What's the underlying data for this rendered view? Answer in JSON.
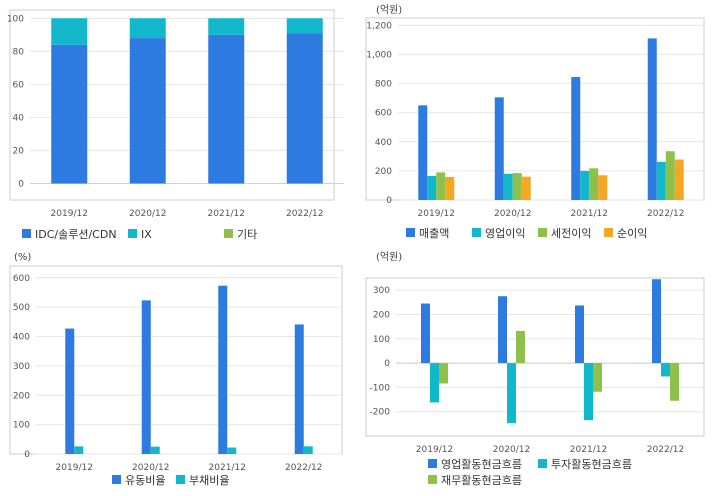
{
  "colors": {
    "blue": "#2d7be0",
    "cyan": "#11b8cc",
    "green": "#8ec04a",
    "orange": "#f5a623",
    "grid": "#e6e6e6",
    "frame": "#cccccc"
  },
  "chart_data": [
    {
      "id": "composition",
      "type": "bar",
      "stacked": true,
      "unit": "",
      "categories": [
        "2019/12",
        "2020/12",
        "2021/12",
        "2022/12"
      ],
      "series": [
        {
          "name": "IDC/솔루션/CDN",
          "color": "blue",
          "values": [
            84,
            88,
            90,
            91
          ]
        },
        {
          "name": "IX",
          "color": "cyan",
          "values": [
            16,
            12,
            10,
            9
          ]
        },
        {
          "name": "기타",
          "color": "green",
          "values": [
            0,
            0,
            0,
            0
          ]
        }
      ],
      "ylim": [
        -10,
        105
      ],
      "yticks": [
        0,
        20,
        40,
        60,
        80,
        100
      ],
      "grid": true,
      "legend": "bottom"
    },
    {
      "id": "income",
      "type": "bar",
      "unit": "(억원)",
      "categories": [
        "2019/12",
        "2020/12",
        "2021/12",
        "2022/12"
      ],
      "series": [
        {
          "name": "매출액",
          "color": "blue",
          "values": [
            650,
            705,
            845,
            1110
          ]
        },
        {
          "name": "영업이익",
          "color": "cyan",
          "values": [
            165,
            180,
            200,
            262
          ]
        },
        {
          "name": "세전이익",
          "color": "green",
          "values": [
            190,
            185,
            218,
            335
          ]
        },
        {
          "name": "순이익",
          "color": "orange",
          "values": [
            158,
            160,
            170,
            278
          ]
        }
      ],
      "ylim": [
        0,
        1250
      ],
      "yticks": [
        0,
        200,
        400,
        600,
        800,
        1000,
        1200
      ],
      "ytick_labels": [
        "0",
        "200",
        "400",
        "600",
        "800",
        "1,000",
        "1,200"
      ],
      "grid": true,
      "legend": "bottom"
    },
    {
      "id": "ratios",
      "type": "bar",
      "unit": "(%)",
      "categories": [
        "2019/12",
        "2020/12",
        "2021/12",
        "2022/12"
      ],
      "series": [
        {
          "name": "유동비율",
          "color": "blue",
          "values": [
            427,
            523,
            573,
            441
          ]
        },
        {
          "name": "부채비율",
          "color": "cyan",
          "values": [
            26,
            25,
            22,
            26
          ]
        }
      ],
      "ylim": [
        0,
        640
      ],
      "yticks": [
        0,
        100,
        200,
        300,
        400,
        500,
        600
      ],
      "grid": true,
      "legend": "bottom"
    },
    {
      "id": "cashflow",
      "type": "bar",
      "unit": "(억원)",
      "categories": [
        "2019/12",
        "2020/12",
        "2021/12",
        "2022/12"
      ],
      "series": [
        {
          "name": "영업활동현금흐름",
          "color": "blue",
          "values": [
            245,
            275,
            237,
            345
          ]
        },
        {
          "name": "투자활동현금흐름",
          "color": "cyan",
          "values": [
            -162,
            -247,
            -235,
            -55
          ]
        },
        {
          "name": "재무활동현금흐름",
          "color": "green",
          "values": [
            -84,
            132,
            -118,
            -155
          ]
        }
      ],
      "ylim": [
        -300,
        350
      ],
      "yticks": [
        -200,
        -100,
        0,
        100,
        200,
        300
      ],
      "grid": true,
      "legend": "bottom"
    }
  ]
}
